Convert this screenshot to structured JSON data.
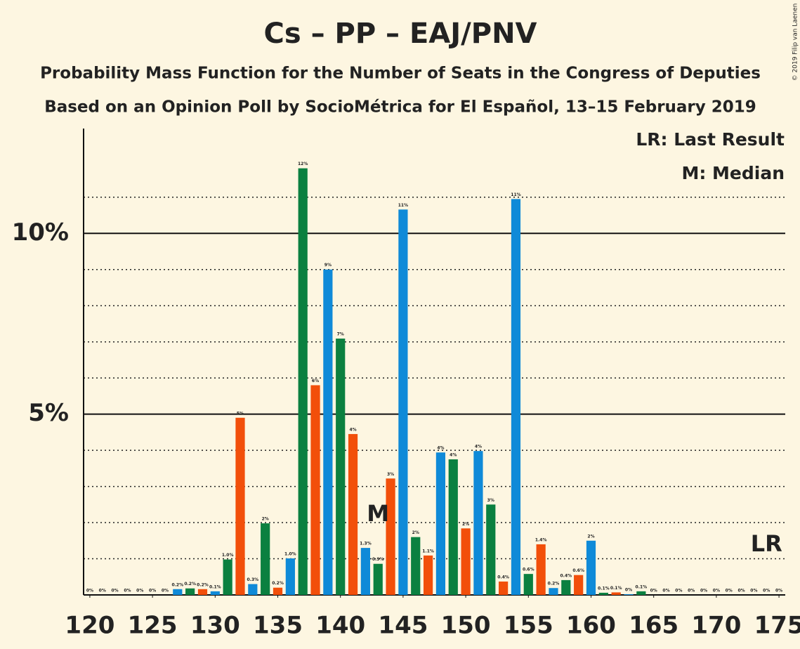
{
  "chart_data": {
    "type": "bar",
    "title": "Cs – PP – EAJ/PNV",
    "subtitle": "Probability Mass Function for the Number of Seats in the Congress of Deputies",
    "subtitle2": "Based on an Opinion Poll by SocioMétrica for El Español, 13–15 February 2019",
    "legend": [
      "LR: Last Result",
      "M: Median"
    ],
    "credit": "© 2019 Filip van Laenen",
    "categories": [
      120,
      121,
      122,
      123,
      124,
      125,
      126,
      127,
      128,
      129,
      130,
      131,
      132,
      133,
      134,
      135,
      136,
      137,
      138,
      139,
      140,
      141,
      142,
      143,
      144,
      145,
      146,
      147,
      148,
      149,
      150,
      151,
      152,
      153,
      154,
      155,
      156,
      157,
      158,
      159,
      160,
      161,
      162,
      163,
      164,
      165,
      166,
      167,
      168,
      169,
      170,
      171,
      172,
      173,
      174,
      175
    ],
    "values": [
      0,
      0,
      0,
      0,
      0,
      0,
      0,
      0.16,
      0.18,
      0.16,
      0.1,
      0.98,
      4.9,
      0.3,
      1.98,
      0.2,
      1.01,
      11.8,
      5.8,
      9.0,
      7.09,
      4.45,
      1.3,
      0.86,
      3.22,
      10.66,
      1.6,
      1.09,
      3.94,
      3.75,
      1.84,
      3.98,
      2.5,
      0.37,
      10.95,
      0.58,
      1.4,
      0.19,
      0.41,
      0.55,
      1.5,
      0.06,
      0.07,
      0.02,
      0.1,
      0,
      0,
      0,
      0,
      0,
      0,
      0,
      0,
      0,
      0,
      0
    ],
    "value_labels": [
      "0%",
      "0%",
      "0%",
      "0%",
      "0%",
      "0%",
      "0%",
      "0.2%",
      "0.2%",
      "0.2%",
      "0.1%",
      "1.0%",
      "5%",
      "0.3%",
      "2%",
      "0.2%",
      "1.0%",
      "12%",
      "6%",
      "9%",
      "7%",
      "4%",
      "1.3%",
      "0.9%",
      "3%",
      "11%",
      "2%",
      "1.1%",
      "4%",
      "4%",
      "2%",
      "4%",
      "3%",
      "0.4%",
      "11%",
      "0.6%",
      "1.4%",
      "0.2%",
      "0.4%",
      "0.6%",
      "2%",
      "0.1%",
      "0.1%",
      "0%",
      "0.1%",
      "0%",
      "0%",
      "0%",
      "0%",
      "0%",
      "0%",
      "0%",
      "0%",
      "0%",
      "0%",
      "0%"
    ],
    "palette": [
      "#f24f0a",
      "#0f8ad8",
      "#0b8040"
    ],
    "xlim": [
      119.5,
      175.5
    ],
    "xticks": [
      120,
      125,
      130,
      135,
      140,
      145,
      150,
      155,
      160,
      165,
      170,
      175
    ],
    "ylim": [
      0,
      12.9
    ],
    "yticks": [
      {
        "value": 5,
        "label": "5%"
      },
      {
        "value": 10,
        "label": "10%"
      }
    ],
    "minor_gridlines": [
      1,
      2,
      3,
      4,
      6,
      7,
      8,
      9,
      11
    ],
    "annotations": [
      {
        "text": "M",
        "x": 143
      },
      {
        "text": "LR",
        "x": 174
      }
    ]
  }
}
